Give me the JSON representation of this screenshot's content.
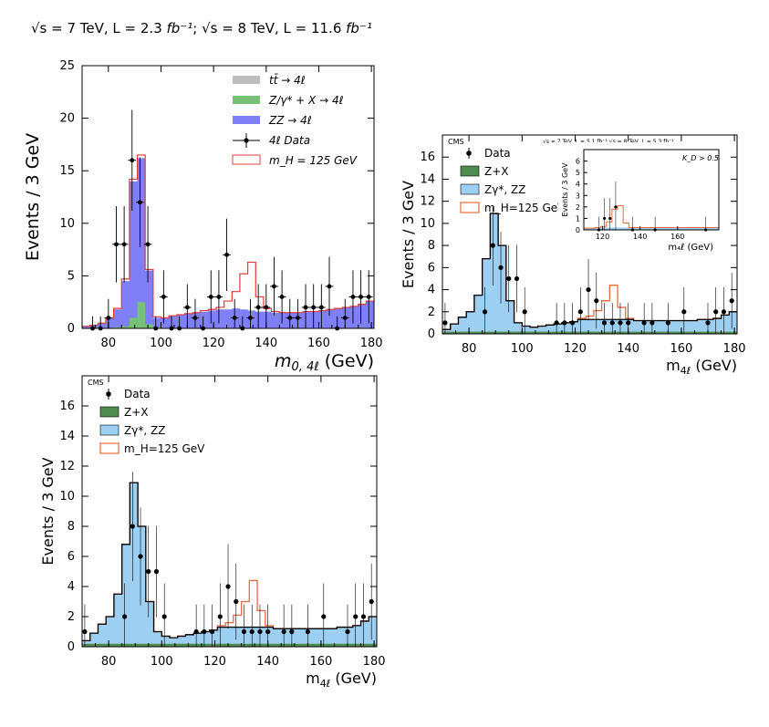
{
  "header": {
    "sqrt_s_1": "√s",
    "energy_1": " = 7 TeV, L = 2.3 ",
    "lumi_unit_1": "fb⁻¹",
    "sep": "; ",
    "sqrt_s_2": "√s",
    "energy_2": " = 8 TeV, L = 11.6 ",
    "lumi_unit_2": "fb⁻¹"
  },
  "colors": {
    "ttbar": "#bdbdbd",
    "zx_green": "#77c077",
    "zz_purple": "#7f7ff7",
    "signal_red": "#e23c3c",
    "cms_blue": "#9ccff2",
    "cms_green": "#4f8c4f",
    "cms_orange": "#ec6b3d"
  },
  "chart_data": [
    {
      "id": "top-left",
      "type": "bar",
      "title": "",
      "xlabel": "m_{0,4ℓ} (GeV)",
      "ylabel": "Events / 3 GeV",
      "xlim": [
        70,
        181
      ],
      "ylim": [
        0,
        25
      ],
      "xticks": [
        80,
        100,
        120,
        140,
        160,
        180
      ],
      "yticks": [
        0,
        5,
        10,
        15,
        20,
        25
      ],
      "bin_width": 3,
      "bin_edges_start": 70,
      "legend": [
        "tt̄ → 4ℓ",
        "Z/γ* + X → 4ℓ",
        "ZZ → 4ℓ",
        "4ℓ Data",
        "m_H = 125 GeV"
      ],
      "legend_position": "top-right",
      "series": [
        {
          "name": "ZZ → 4ℓ",
          "values": [
            0.2,
            0.3,
            0.5,
            1.0,
            1.8,
            4.5,
            14.0,
            16.2,
            5.5,
            1.0,
            1.0,
            1.2,
            1.3,
            1.4,
            1.5,
            1.6,
            1.7,
            1.8,
            1.8,
            1.9,
            1.8,
            1.7,
            1.6,
            1.6,
            1.5,
            1.5,
            1.5,
            1.5,
            1.6,
            1.6,
            1.7,
            1.8,
            1.9,
            2.0,
            2.1,
            2.3,
            2.6
          ]
        },
        {
          "name": "Z/γ* + X → 4ℓ",
          "values": [
            0,
            0,
            0,
            0,
            0.1,
            0.2,
            1.0,
            2.5,
            0.4,
            0.1,
            0,
            0,
            0,
            0,
            0,
            0,
            0,
            0,
            0,
            0,
            0,
            0,
            0,
            0,
            0,
            0,
            0,
            0,
            0,
            0,
            0,
            0,
            0,
            0,
            0,
            0,
            0
          ]
        },
        {
          "name": "m_H = 125 GeV",
          "values": [
            0.2,
            0.3,
            0.5,
            1.0,
            1.9,
            4.7,
            14.2,
            16.5,
            5.6,
            1.1,
            1.0,
            1.2,
            1.3,
            1.4,
            1.5,
            1.7,
            1.8,
            2.0,
            2.6,
            3.5,
            5.2,
            6.3,
            3.0,
            1.9,
            1.6,
            1.5,
            1.5,
            1.5,
            1.6,
            1.6,
            1.7,
            1.8,
            1.9,
            2.0,
            2.1,
            2.3,
            2.6
          ]
        }
      ],
      "data_points": [
        {
          "x": 74,
          "y": 0
        },
        {
          "x": 77,
          "y": 0
        },
        {
          "x": 80,
          "y": 1
        },
        {
          "x": 83,
          "y": 8
        },
        {
          "x": 86,
          "y": 8
        },
        {
          "x": 89,
          "y": 16
        },
        {
          "x": 92,
          "y": 12
        },
        {
          "x": 95,
          "y": 8
        },
        {
          "x": 98,
          "y": 0
        },
        {
          "x": 101,
          "y": 3
        },
        {
          "x": 104,
          "y": 0
        },
        {
          "x": 107,
          "y": 0
        },
        {
          "x": 110,
          "y": 2
        },
        {
          "x": 113,
          "y": 1
        },
        {
          "x": 116,
          "y": 0
        },
        {
          "x": 119,
          "y": 3
        },
        {
          "x": 122,
          "y": 3
        },
        {
          "x": 125,
          "y": 7
        },
        {
          "x": 128,
          "y": 1
        },
        {
          "x": 131,
          "y": 0
        },
        {
          "x": 134,
          "y": 1
        },
        {
          "x": 137,
          "y": 2
        },
        {
          "x": 140,
          "y": 2
        },
        {
          "x": 143,
          "y": 4
        },
        {
          "x": 146,
          "y": 3
        },
        {
          "x": 149,
          "y": 1
        },
        {
          "x": 152,
          "y": 1
        },
        {
          "x": 155,
          "y": 2
        },
        {
          "x": 158,
          "y": 2
        },
        {
          "x": 161,
          "y": 2
        },
        {
          "x": 164,
          "y": 4
        },
        {
          "x": 167,
          "y": 0
        },
        {
          "x": 170,
          "y": 1
        },
        {
          "x": 173,
          "y": 3
        },
        {
          "x": 176,
          "y": 3
        },
        {
          "x": 179,
          "y": 3
        }
      ]
    },
    {
      "id": "top-right",
      "type": "bar",
      "title": "CMS   √s = 7 TeV, L = 5.1 fb⁻¹  √s = 8 TeV, L = 5.3 fb⁻¹",
      "xlabel": "m_{4ℓ} (GeV)",
      "ylabel": "Events / 3 GeV",
      "xlim": [
        70,
        181
      ],
      "ylim": [
        0,
        18
      ],
      "xticks": [
        80,
        100,
        120,
        140,
        160,
        180
      ],
      "yticks": [
        0,
        2,
        4,
        6,
        8,
        10,
        12,
        14,
        16
      ],
      "legend": [
        "Data",
        "Z+X",
        "Zγ*, ZZ",
        "m_H=125 GeV"
      ],
      "legend_position": "top-left",
      "series": [
        {
          "name": "Z+X",
          "values": [
            0.2,
            0.2,
            0.2,
            0.2,
            0.2,
            0.2,
            0.2,
            0.2,
            0.2,
            0.2,
            0.2,
            0.2,
            0.2,
            0.2,
            0.2,
            0.2,
            0.2,
            0.2,
            0.2,
            0.2,
            0.2,
            0.2,
            0.2,
            0.2,
            0.2,
            0.2,
            0.2,
            0.2,
            0.2,
            0.2,
            0.2,
            0.2,
            0.2,
            0.2,
            0.2,
            0.2,
            0.2
          ]
        },
        {
          "name": "Zγ*, ZZ",
          "values": [
            0.4,
            0.9,
            1.5,
            2.0,
            3.5,
            6.8,
            10.9,
            8.0,
            3.0,
            1.0,
            0.7,
            0.6,
            0.7,
            0.8,
            0.9,
            1.0,
            1.1,
            1.3,
            1.3,
            1.3,
            1.3,
            1.3,
            1.3,
            1.3,
            1.2,
            1.2,
            1.2,
            1.2,
            1.2,
            1.2,
            1.2,
            1.2,
            1.3,
            1.3,
            1.4,
            1.7,
            2.0
          ]
        },
        {
          "name": "m_H=125 GeV",
          "values": [
            0.4,
            0.9,
            1.5,
            2.0,
            3.5,
            6.8,
            10.9,
            8.0,
            3.0,
            1.0,
            0.7,
            0.6,
            0.7,
            0.8,
            0.9,
            1.0,
            1.1,
            1.4,
            1.6,
            2.1,
            3.0,
            4.4,
            2.4,
            1.4,
            1.2,
            1.2,
            1.2,
            1.2,
            1.2,
            1.2,
            1.2,
            1.2,
            1.3,
            1.3,
            1.4,
            1.7,
            2.0
          ]
        }
      ],
      "data_points": [
        {
          "x": 71,
          "y": 1
        },
        {
          "x": 86,
          "y": 2
        },
        {
          "x": 89,
          "y": 8
        },
        {
          "x": 92,
          "y": 6
        },
        {
          "x": 95,
          "y": 5
        },
        {
          "x": 98,
          "y": 5
        },
        {
          "x": 101,
          "y": 2
        },
        {
          "x": 113,
          "y": 1
        },
        {
          "x": 116,
          "y": 1
        },
        {
          "x": 119,
          "y": 1
        },
        {
          "x": 122,
          "y": 2
        },
        {
          "x": 125,
          "y": 4
        },
        {
          "x": 128,
          "y": 3
        },
        {
          "x": 131,
          "y": 1
        },
        {
          "x": 134,
          "y": 1
        },
        {
          "x": 137,
          "y": 1
        },
        {
          "x": 140,
          "y": 1
        },
        {
          "x": 146,
          "y": 1
        },
        {
          "x": 149,
          "y": 1
        },
        {
          "x": 155,
          "y": 1
        },
        {
          "x": 161,
          "y": 2
        },
        {
          "x": 170,
          "y": 1
        },
        {
          "x": 173,
          "y": 2
        },
        {
          "x": 176,
          "y": 2
        },
        {
          "x": 179,
          "y": 3
        }
      ],
      "inset": {
        "label": "K_D > 0.5",
        "xlabel": "m_{4ℓ} (GeV)",
        "ylabel": "Events / 3 GeV",
        "xlim": [
          110,
          182
        ],
        "ylim": [
          0,
          7
        ],
        "xticks": [
          120,
          140,
          160
        ],
        "yticks": [
          0,
          1,
          2,
          3,
          4,
          5,
          6
        ],
        "bin_start": 110,
        "background": [
          0.15,
          0.15,
          0.2,
          0.2,
          0.2,
          0.2,
          0.2,
          0.2,
          0.2,
          0.2,
          0.2,
          0.2,
          0.2,
          0.2,
          0.2,
          0.2,
          0.2,
          0.2,
          0.2,
          0.2,
          0.2,
          0.2,
          0.2,
          0.2
        ],
        "signal": [
          0.15,
          0.15,
          0.2,
          0.3,
          0.7,
          1.8,
          2.1,
          0.6,
          0.2,
          0.2,
          0.2,
          0.2,
          0.2,
          0.2,
          0.2,
          0.2,
          0.2,
          0.2,
          0.2,
          0.2,
          0.2,
          0.2,
          0.2,
          0.2
        ],
        "data_points": [
          {
            "x": 118,
            "y": 0
          },
          {
            "x": 121,
            "y": 1
          },
          {
            "x": 124,
            "y": 1
          },
          {
            "x": 127,
            "y": 2
          },
          {
            "x": 136,
            "y": 0
          },
          {
            "x": 148,
            "y": 0
          },
          {
            "x": 175,
            "y": 0
          }
        ]
      }
    },
    {
      "id": "bottom-left",
      "type": "bar",
      "title": "CMS",
      "xlabel": "m_{4ℓ} (GeV)",
      "ylabel": "Events / 3 GeV",
      "xlim": [
        70,
        181
      ],
      "ylim": [
        0,
        18
      ],
      "xticks": [
        80,
        100,
        120,
        140,
        160,
        180
      ],
      "yticks": [
        0,
        2,
        4,
        6,
        8,
        10,
        12,
        14,
        16
      ],
      "legend": [
        "Data",
        "Z+X",
        "Zγ*, ZZ",
        "m_H=125 GeV"
      ],
      "legend_position": "top-left",
      "series": [
        {
          "name": "Z+X",
          "values": [
            0.2,
            0.2,
            0.2,
            0.2,
            0.2,
            0.2,
            0.2,
            0.2,
            0.2,
            0.2,
            0.2,
            0.2,
            0.2,
            0.2,
            0.2,
            0.2,
            0.2,
            0.2,
            0.2,
            0.2,
            0.2,
            0.2,
            0.2,
            0.2,
            0.2,
            0.2,
            0.2,
            0.2,
            0.2,
            0.2,
            0.2,
            0.2,
            0.2,
            0.2,
            0.2,
            0.2,
            0.2
          ]
        },
        {
          "name": "Zγ*, ZZ",
          "values": [
            0.4,
            0.9,
            1.5,
            2.0,
            3.5,
            6.8,
            10.9,
            8.0,
            3.0,
            1.0,
            0.7,
            0.6,
            0.7,
            0.8,
            0.9,
            1.0,
            1.1,
            1.3,
            1.3,
            1.3,
            1.3,
            1.3,
            1.3,
            1.3,
            1.2,
            1.2,
            1.2,
            1.2,
            1.2,
            1.2,
            1.2,
            1.2,
            1.3,
            1.3,
            1.4,
            1.7,
            2.0
          ]
        },
        {
          "name": "m_H=125 GeV",
          "values": [
            0.4,
            0.9,
            1.5,
            2.0,
            3.5,
            6.8,
            10.9,
            8.0,
            3.0,
            1.0,
            0.7,
            0.6,
            0.7,
            0.8,
            0.9,
            1.0,
            1.1,
            1.4,
            1.6,
            2.1,
            3.0,
            4.4,
            2.4,
            1.4,
            1.2,
            1.2,
            1.2,
            1.2,
            1.2,
            1.2,
            1.2,
            1.2,
            1.3,
            1.3,
            1.4,
            1.7,
            2.0
          ]
        }
      ],
      "data_points": [
        {
          "x": 71,
          "y": 1
        },
        {
          "x": 86,
          "y": 2
        },
        {
          "x": 89,
          "y": 8
        },
        {
          "x": 92,
          "y": 6
        },
        {
          "x": 95,
          "y": 5
        },
        {
          "x": 98,
          "y": 5
        },
        {
          "x": 101,
          "y": 2
        },
        {
          "x": 113,
          "y": 1
        },
        {
          "x": 116,
          "y": 1
        },
        {
          "x": 119,
          "y": 1
        },
        {
          "x": 122,
          "y": 2
        },
        {
          "x": 125,
          "y": 4
        },
        {
          "x": 128,
          "y": 3
        },
        {
          "x": 131,
          "y": 1
        },
        {
          "x": 134,
          "y": 1
        },
        {
          "x": 137,
          "y": 1
        },
        {
          "x": 140,
          "y": 1
        },
        {
          "x": 146,
          "y": 1
        },
        {
          "x": 149,
          "y": 1
        },
        {
          "x": 155,
          "y": 1
        },
        {
          "x": 161,
          "y": 2
        },
        {
          "x": 170,
          "y": 1
        },
        {
          "x": 173,
          "y": 2
        },
        {
          "x": 176,
          "y": 2
        },
        {
          "x": 179,
          "y": 3
        }
      ]
    }
  ]
}
